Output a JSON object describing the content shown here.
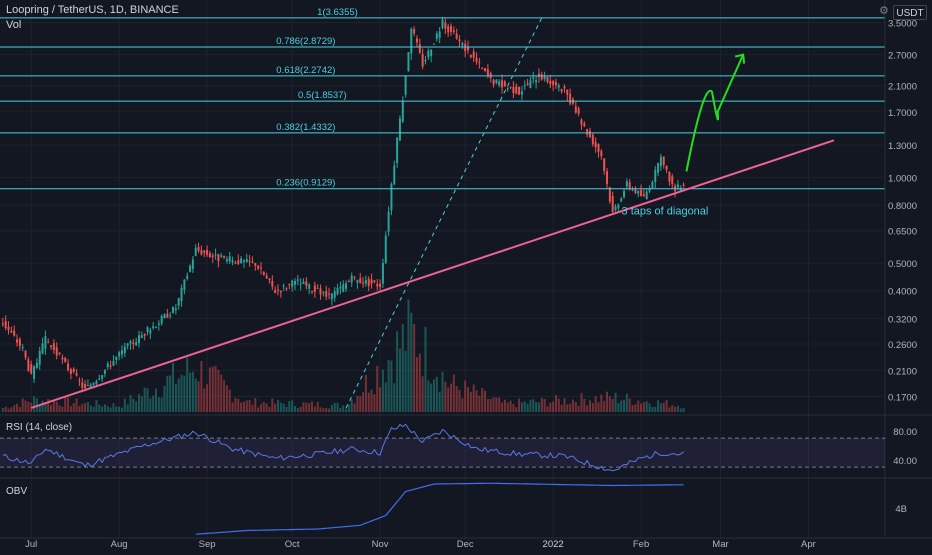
{
  "header": {
    "symbol": "Loopring / TetherUS, 1D, BINANCE",
    "volume_label": "Vol",
    "currency": "USDT"
  },
  "colors": {
    "background": "#131722",
    "up": "#26a69a",
    "down": "#ef5350",
    "fib_line": "#4dd0e1",
    "trendline": "#f06292",
    "rsi_line": "#5b78e6",
    "obv_line": "#3f6ff0",
    "projection_arrow": "#22dd22",
    "annotation_text": "#4dd0e1"
  },
  "chart_data": [
    {
      "type": "candlestick",
      "panel": "price",
      "y_scale": "log",
      "ylim": [
        0.15,
        4.2
      ],
      "y_ticks": [
        "3.5000",
        "2.7000",
        "2.1000",
        "1.7000",
        "1.3000",
        "1.0000",
        "0.8000",
        "0.6500",
        "0.5000",
        "0.4000",
        "0.3200",
        "0.2600",
        "0.2100",
        "0.1700"
      ],
      "y_tick_values": [
        3.5,
        2.7,
        2.1,
        1.7,
        1.3,
        1.0,
        0.8,
        0.65,
        0.5,
        0.4,
        0.32,
        0.26,
        0.21,
        0.17
      ],
      "x_ticks": [
        "Jul",
        "Aug",
        "Sep",
        "Oct",
        "Nov",
        "Dec",
        "2022",
        "Feb",
        "Mar",
        "Apr"
      ],
      "fibonacci_levels": [
        {
          "label": "1(3.6355)",
          "value": 3.6355
        },
        {
          "label": "0.786(2.8729)",
          "value": 2.8729
        },
        {
          "label": "0.618(2.2742)",
          "value": 2.2742
        },
        {
          "label": "0.5(1.8537)",
          "value": 1.8537
        },
        {
          "label": "0.382(1.4332)",
          "value": 1.4332
        },
        {
          "label": "0.236(0.9129)",
          "value": 0.9129
        }
      ],
      "trendline": {
        "start": {
          "date": "Jul 1 2021",
          "value": 0.155
        },
        "end": {
          "date": "Apr 10 2022",
          "value": 1.35
        }
      },
      "dashed_line": {
        "start": {
          "date": "Oct 20 2021",
          "value": 0.155
        },
        "end": {
          "date": "Dec 28 2021",
          "value": 3.6355
        }
      },
      "annotation": "3 taps of diagonal",
      "price_path": [
        {
          "date": "Jun 21 2021",
          "value": 0.31
        },
        {
          "date": "Jun 28 2021",
          "value": 0.25
        },
        {
          "date": "Jul 1 2021",
          "value": 0.2
        },
        {
          "date": "Jul 6 2021",
          "value": 0.27
        },
        {
          "date": "Jul 20 2021",
          "value": 0.18
        },
        {
          "date": "Aug 3 2021",
          "value": 0.25
        },
        {
          "date": "Aug 21 2021",
          "value": 0.35
        },
        {
          "date": "Aug 28 2021",
          "value": 0.56
        },
        {
          "date": "Sep 5 2021",
          "value": 0.52
        },
        {
          "date": "Sep 18 2021",
          "value": 0.5
        },
        {
          "date": "Sep 25 2021",
          "value": 0.4
        },
        {
          "date": "Oct 3 2021",
          "value": 0.43
        },
        {
          "date": "Oct 14 2021",
          "value": 0.38
        },
        {
          "date": "Oct 22 2021",
          "value": 0.44
        },
        {
          "date": "Nov 1 2021",
          "value": 0.42
        },
        {
          "date": "Nov 5 2021",
          "value": 0.95
        },
        {
          "date": "Nov 9 2021",
          "value": 1.9
        },
        {
          "date": "Nov 12 2021",
          "value": 3.4
        },
        {
          "date": "Nov 16 2021",
          "value": 2.5
        },
        {
          "date": "Nov 23 2021",
          "value": 3.5
        },
        {
          "date": "Dec 3 2021",
          "value": 2.7
        },
        {
          "date": "Dec 10 2021",
          "value": 2.2
        },
        {
          "date": "Dec 20 2021",
          "value": 2.0
        },
        {
          "date": "Dec 27 2021",
          "value": 2.3
        },
        {
          "date": "Jan 5 2022",
          "value": 2.0
        },
        {
          "date": "Jan 12 2022",
          "value": 1.5
        },
        {
          "date": "Jan 18 2022",
          "value": 1.2
        },
        {
          "date": "Jan 22 2022",
          "value": 0.75
        },
        {
          "date": "Jan 27 2022",
          "value": 0.95
        },
        {
          "date": "Feb 2 2022",
          "value": 0.85
        },
        {
          "date": "Feb 8 2022",
          "value": 1.15
        },
        {
          "date": "Feb 13 2022",
          "value": 0.9
        },
        {
          "date": "Feb 16 2022",
          "value": 0.96
        }
      ],
      "projection": [
        {
          "date": "Feb 17 2022",
          "value": 1.05
        },
        {
          "date": "Feb 26 2022",
          "value": 2.0
        },
        {
          "date": "Feb 28 2022",
          "value": 1.7
        },
        {
          "date": "Mar 9 2022",
          "value": 2.7
        }
      ]
    },
    {
      "type": "bar",
      "panel": "volume",
      "volume_path": [
        {
          "date": "Jun 21 2021",
          "value": 0.05
        },
        {
          "date": "Jul 1 2021",
          "value": 0.15
        },
        {
          "date": "Aug 1 2021",
          "value": 0.08
        },
        {
          "date": "Aug 28 2021",
          "value": 0.55
        },
        {
          "date": "Sep 15 2021",
          "value": 0.12
        },
        {
          "date": "Oct 20 2021",
          "value": 0.08
        },
        {
          "date": "Nov 5 2021",
          "value": 0.7
        },
        {
          "date": "Nov 12 2021",
          "value": 1.0
        },
        {
          "date": "Nov 25 2021",
          "value": 0.35
        },
        {
          "date": "Dec 15 2021",
          "value": 0.1
        },
        {
          "date": "Jan 22 2022",
          "value": 0.18
        },
        {
          "date": "Feb 16 2022",
          "value": 0.08
        }
      ]
    },
    {
      "type": "line",
      "panel": "rsi",
      "title": "RSI (14, close)",
      "y_ticks": [
        "80.00",
        "40.00"
      ],
      "y_tick_values": [
        80,
        40
      ],
      "ylim": [
        15,
        95
      ],
      "band": [
        70,
        30
      ],
      "values_path": [
        {
          "date": "Jun 21 2021",
          "value": 45
        },
        {
          "date": "Jul 1 2021",
          "value": 35
        },
        {
          "date": "Jul 6 2021",
          "value": 55
        },
        {
          "date": "Jul 20 2021",
          "value": 32
        },
        {
          "date": "Aug 10 2021",
          "value": 60
        },
        {
          "date": "Aug 28 2021",
          "value": 78
        },
        {
          "date": "Sep 10 2021",
          "value": 55
        },
        {
          "date": "Sep 25 2021",
          "value": 42
        },
        {
          "date": "Oct 10 2021",
          "value": 48
        },
        {
          "date": "Oct 22 2021",
          "value": 55
        },
        {
          "date": "Nov 1 2021",
          "value": 50
        },
        {
          "date": "Nov 5 2021",
          "value": 82
        },
        {
          "date": "Nov 10 2021",
          "value": 88
        },
        {
          "date": "Nov 16 2021",
          "value": 65
        },
        {
          "date": "Nov 23 2021",
          "value": 80
        },
        {
          "date": "Dec 5 2021",
          "value": 55
        },
        {
          "date": "Dec 20 2021",
          "value": 48
        },
        {
          "date": "Jan 5 2022",
          "value": 45
        },
        {
          "date": "Jan 22 2022",
          "value": 25
        },
        {
          "date": "Feb 1 2022",
          "value": 42
        },
        {
          "date": "Feb 8 2022",
          "value": 50
        },
        {
          "date": "Feb 16 2022",
          "value": 48
        }
      ]
    },
    {
      "type": "line",
      "panel": "obv",
      "title": "OBV",
      "y_ticks": [
        "4B"
      ],
      "y_tick_values": [
        4
      ],
      "ylim": [
        0,
        8
      ],
      "values_path": [
        {
          "date": "Aug 28 2021",
          "value": 0.5
        },
        {
          "date": "Sep 15 2021",
          "value": 1.0
        },
        {
          "date": "Oct 10 2021",
          "value": 1.2
        },
        {
          "date": "Oct 25 2021",
          "value": 1.7
        },
        {
          "date": "Nov 3 2021",
          "value": 3.0
        },
        {
          "date": "Nov 10 2021",
          "value": 6.2
        },
        {
          "date": "Nov 20 2021",
          "value": 7.2
        },
        {
          "date": "Dec 10 2021",
          "value": 7.3
        },
        {
          "date": "Jan 22 2022",
          "value": 7.0
        },
        {
          "date": "Feb 16 2022",
          "value": 7.1
        }
      ]
    }
  ]
}
